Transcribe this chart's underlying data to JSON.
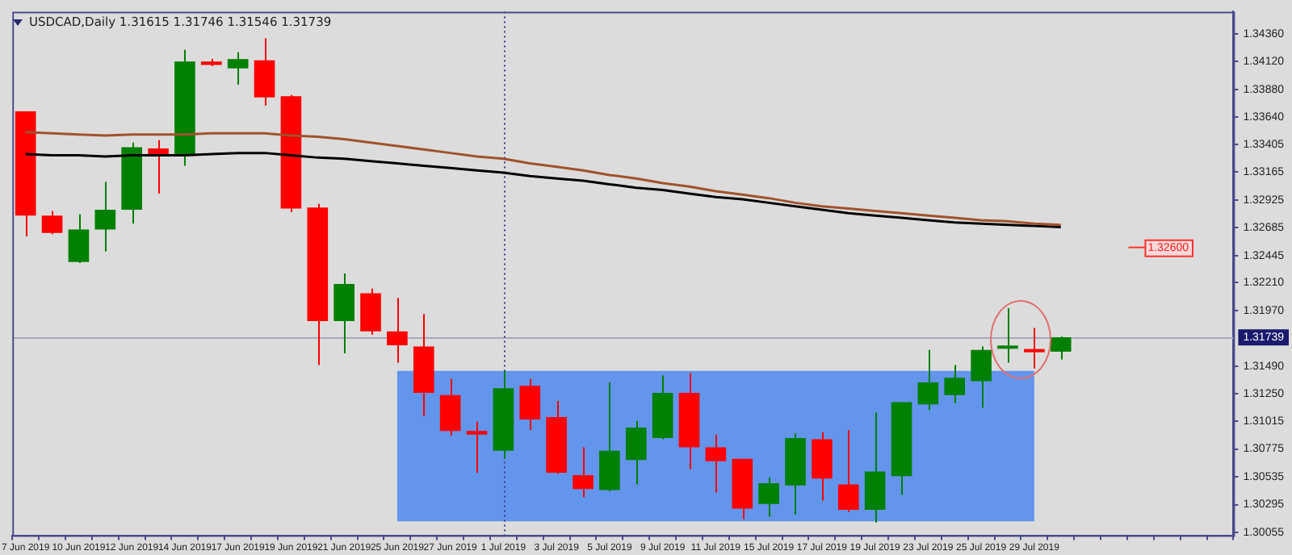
{
  "chart_data": {
    "type": "candlestick",
    "title": "USDCAD,Daily  1.31615 1.31746 1.31546 1.31739",
    "categories": [
      "7 Jun 2019",
      null,
      "10 Jun 2019",
      null,
      "12 Jun 2019",
      null,
      "14 Jun 2019",
      null,
      "17 Jun 2019",
      null,
      "19 Jun 2019",
      null,
      "21 Jun 2019",
      null,
      "25 Jun 2019",
      null,
      "27 Jun 2019",
      null,
      "1 Jul 2019",
      null,
      "3 Jul 2019",
      null,
      "5 Jul 2019",
      null,
      "9 Jul 2019",
      null,
      "11 Jul 2019",
      null,
      "15 Jul 2019",
      null,
      "17 Jul 2019",
      null,
      "19 Jul 2019",
      null,
      "23 Jul 2019",
      null,
      "25 Jul 2019",
      null,
      "29 Jul 2019",
      null
    ],
    "ohlc": [
      [
        1.3369,
        1.3369,
        1.3261,
        1.3279
      ],
      [
        1.3279,
        1.3283,
        1.3263,
        1.3264
      ],
      [
        1.3239,
        1.328,
        1.3238,
        1.3267
      ],
      [
        1.3267,
        1.3308,
        1.3248,
        1.3284
      ],
      [
        1.3284,
        1.3342,
        1.3272,
        1.3338
      ],
      [
        1.3337,
        1.3344,
        1.3298,
        1.3332
      ],
      [
        1.3331,
        1.3422,
        1.3322,
        1.3412
      ],
      [
        1.3412,
        1.3414,
        1.3408,
        1.3409
      ],
      [
        1.3406,
        1.342,
        1.3392,
        1.3414
      ],
      [
        1.3413,
        1.3432,
        1.3374,
        1.3381
      ],
      [
        1.3382,
        1.3383,
        1.3282,
        1.3285
      ],
      [
        1.3286,
        1.3289,
        1.315,
        1.3188
      ],
      [
        1.3188,
        1.3229,
        1.316,
        1.322
      ],
      [
        1.3212,
        1.3216,
        1.3176,
        1.3179
      ],
      [
        1.3179,
        1.3208,
        1.3152,
        1.3167
      ],
      [
        1.3166,
        1.3194,
        1.3106,
        1.3126
      ],
      [
        1.3124,
        1.3138,
        1.3089,
        1.3093
      ],
      [
        1.3093,
        1.3101,
        1.3057,
        1.309
      ],
      [
        1.3076,
        1.3145,
        1.3069,
        1.313
      ],
      [
        1.3132,
        1.3138,
        1.3094,
        1.3103
      ],
      [
        1.3105,
        1.3119,
        1.3056,
        1.3057
      ],
      [
        1.3055,
        1.3079,
        1.3036,
        1.3043
      ],
      [
        1.3042,
        1.3135,
        1.3041,
        1.3076
      ],
      [
        1.3068,
        1.3102,
        1.3047,
        1.3096
      ],
      [
        1.3087,
        1.3141,
        1.3086,
        1.3126
      ],
      [
        1.3126,
        1.3143,
        1.306,
        1.3079
      ],
      [
        1.3079,
        1.309,
        1.304,
        1.3067
      ],
      [
        1.3069,
        1.3069,
        1.3017,
        1.3026
      ],
      [
        1.303,
        1.3053,
        1.3019,
        1.3048
      ],
      [
        1.3046,
        1.3091,
        1.3021,
        1.3087
      ],
      [
        1.3086,
        1.3092,
        1.3033,
        1.3052
      ],
      [
        1.3047,
        1.3094,
        1.3023,
        1.3025
      ],
      [
        1.3025,
        1.3109,
        1.3014,
        1.3058
      ],
      [
        1.3054,
        1.3118,
        1.3038,
        1.3118
      ],
      [
        1.3116,
        1.3163,
        1.3111,
        1.3135
      ],
      [
        1.3124,
        1.315,
        1.3117,
        1.3139
      ],
      [
        1.3136,
        1.3166,
        1.3113,
        1.3163
      ],
      [
        1.3164,
        1.3199,
        1.3152,
        1.3166
      ],
      [
        1.3163,
        1.3182,
        1.3147,
        1.3161
      ],
      [
        1.31615,
        1.31746,
        1.31546,
        1.31739
      ]
    ],
    "colors": [
      "#ff0000",
      "#ff0000",
      "#008000",
      "#008000",
      "#008000",
      "#ff0000",
      "#008000",
      "#ff0000",
      "#008000",
      "#ff0000",
      "#ff0000",
      "#ff0000",
      "#008000",
      "#ff0000",
      "#ff0000",
      "#ff0000",
      "#ff0000",
      "#ff0000",
      "#008000",
      "#ff0000",
      "#ff0000",
      "#ff0000",
      "#008000",
      "#008000",
      "#008000",
      "#ff0000",
      "#ff0000",
      "#ff0000",
      "#008000",
      "#008000",
      "#ff0000",
      "#ff0000",
      "#008000",
      "#008000",
      "#008000",
      "#008000",
      "#008000",
      "#008000",
      "#ff0000",
      "#008000"
    ],
    "series": [
      {
        "type": "line",
        "color": "#a0522d",
        "values": [
          1.3351,
          1.335,
          1.3349,
          1.3348,
          1.3349,
          1.3349,
          1.3349,
          1.335,
          1.335,
          1.335,
          1.3348,
          1.3347,
          1.3345,
          1.3342,
          1.3339,
          1.3336,
          1.3333,
          1.333,
          1.3328,
          1.3324,
          1.3321,
          1.3318,
          1.3314,
          1.3311,
          1.3307,
          1.3304,
          1.33,
          1.3297,
          1.3294,
          1.329,
          1.3287,
          1.3285,
          1.3283,
          1.3281,
          1.3279,
          1.3277,
          1.3275,
          1.3274,
          1.3272,
          1.3271
        ]
      },
      {
        "type": "line",
        "color": "#000000",
        "values": [
          1.3332,
          1.3331,
          1.3331,
          1.333,
          1.3331,
          1.3331,
          1.3331,
          1.3332,
          1.3333,
          1.3333,
          1.3331,
          1.3329,
          1.3328,
          1.3326,
          1.3324,
          1.3322,
          1.332,
          1.3318,
          1.3316,
          1.3313,
          1.3311,
          1.3309,
          1.3306,
          1.3303,
          1.3301,
          1.3298,
          1.3295,
          1.3293,
          1.329,
          1.3287,
          1.3284,
          1.3281,
          1.3279,
          1.3277,
          1.3275,
          1.3273,
          1.3272,
          1.3271,
          1.327,
          1.3269
        ]
      }
    ],
    "ylim": [
      1.3003,
      1.3455
    ],
    "yticks": [
      {
        "value": 1.3436,
        "label": "1.34360"
      },
      {
        "value": 1.3412,
        "label": "1.34120"
      },
      {
        "value": 1.3388,
        "label": "1.33880"
      },
      {
        "value": 1.3364,
        "label": "1.33640"
      },
      {
        "value": 1.33405,
        "label": "1.33405"
      },
      {
        "value": 1.33165,
        "label": "1.33165"
      },
      {
        "value": 1.32925,
        "label": "1.32925"
      },
      {
        "value": 1.32685,
        "label": "1.32685"
      },
      {
        "value": 1.32445,
        "label": "1.32445"
      },
      {
        "value": 1.3221,
        "label": "1.32210"
      },
      {
        "value": 1.3197,
        "label": "1.31970"
      },
      {
        "value": 1.3149,
        "label": "1.31490"
      },
      {
        "value": 1.3125,
        "label": "1.31250"
      },
      {
        "value": 1.31015,
        "label": "1.31015"
      },
      {
        "value": 1.30775,
        "label": "1.30775"
      },
      {
        "value": 1.30535,
        "label": "1.30535"
      },
      {
        "value": 1.30295,
        "label": "1.30295"
      },
      {
        "value": 1.30055,
        "label": "1.30055"
      }
    ],
    "bands": [
      {
        "axis": "y",
        "from": 1.3015,
        "to": 1.3145,
        "color": "#6495ed"
      }
    ],
    "ref_lines": [
      {
        "axis": "y",
        "value": 1.31739,
        "label": "1.31739",
        "color": "#a8a8b8"
      },
      {
        "axis": "x",
        "value": "1 Jul 2019",
        "color": "#3c3c8c",
        "line_style": "dotted"
      }
    ],
    "annotations": [
      "1.32600"
    ],
    "grid": false,
    "legend": false
  }
}
